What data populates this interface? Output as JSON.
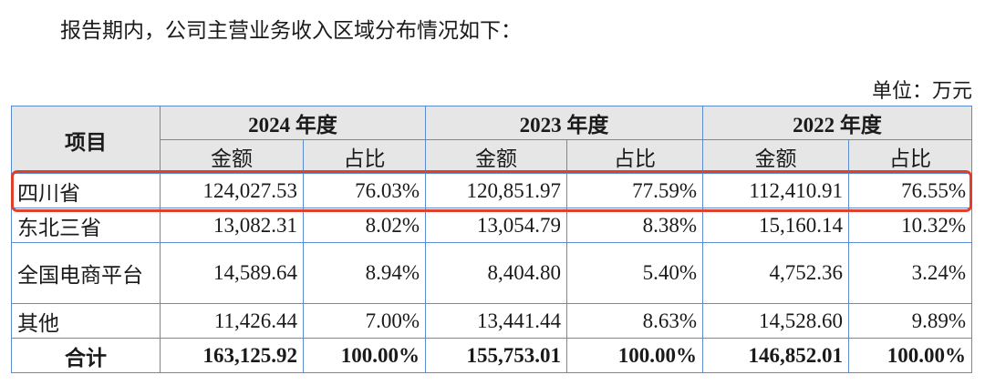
{
  "intro": "报告期内，公司主营业务收入区域分布情况如下：",
  "unit": "单位：万元",
  "header": {
    "item": "项目",
    "years": [
      "2024 年度",
      "2023 年度",
      "2022 年度"
    ],
    "amount": "金额",
    "ratio": "占比"
  },
  "rows": [
    {
      "name": "四川省",
      "v": [
        "124,027.53",
        "76.03%",
        "120,851.97",
        "77.59%",
        "112,410.91",
        "76.55%"
      ]
    },
    {
      "name": "东北三省",
      "v": [
        "13,082.31",
        "8.02%",
        "13,054.79",
        "8.38%",
        "15,160.14",
        "10.32%"
      ]
    },
    {
      "name": "全国电商平台",
      "v": [
        "14,589.64",
        "8.94%",
        "8,404.80",
        "5.40%",
        "4,752.36",
        "3.24%"
      ]
    },
    {
      "name": "其他",
      "v": [
        "11,426.44",
        "7.00%",
        "13,441.44",
        "8.63%",
        "14,528.60",
        "9.89%"
      ]
    },
    {
      "name": "合计",
      "v": [
        "163,125.92",
        "100.00%",
        "155,753.01",
        "100.00%",
        "146,852.01",
        "100.00%"
      ]
    }
  ],
  "highlight_color": "#e0402a"
}
